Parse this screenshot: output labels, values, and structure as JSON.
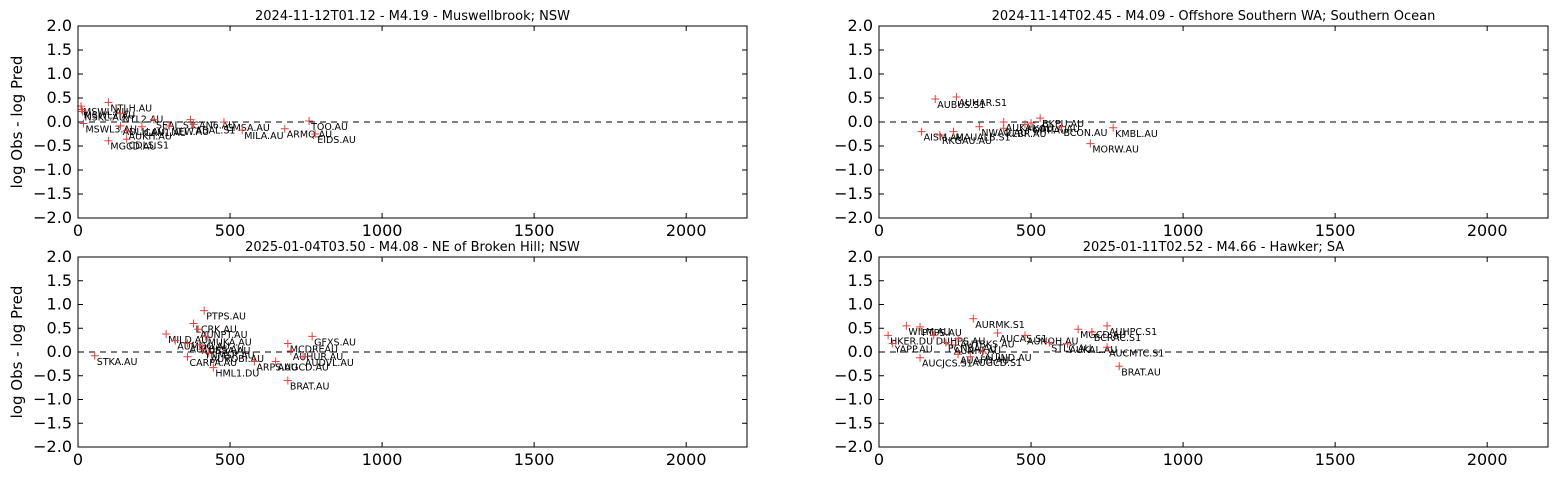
{
  "figure": {
    "ylabel": "log Obs - log Pred"
  },
  "chart_data": [
    {
      "type": "scatter",
      "title": "2024-11-12T01.12 - M4.19 - Muswellbrook; NSW",
      "xlabel": "",
      "ylabel": "log Obs - log Pred",
      "xlim": [
        0,
        2200
      ],
      "ylim": [
        -2.0,
        2.0
      ],
      "xticks": [
        0,
        500,
        1000,
        1500,
        2000
      ],
      "yticks": [
        2.0,
        1.5,
        1.0,
        0.5,
        0.0,
        -0.5,
        -1.0,
        -1.5,
        -2.0
      ],
      "reference_line": 0,
      "points": [
        {
          "label": "MSWL.AU",
          "x": 10,
          "y": 0.33
        },
        {
          "label": "MSWL2.AU",
          "x": 12,
          "y": 0.26
        },
        {
          "label": "NSKL.AU",
          "x": 15,
          "y": 0.22
        },
        {
          "label": "MSWL3.AU",
          "x": 18,
          "y": -0.03
        },
        {
          "label": "NTLH.AU",
          "x": 100,
          "y": 0.41
        },
        {
          "label": "NTL2.AU",
          "x": 140,
          "y": 0.18
        },
        {
          "label": "MGCD.AU",
          "x": 100,
          "y": -0.39
        },
        {
          "label": "ADLH.AU",
          "x": 140,
          "y": -0.08
        },
        {
          "label": "AUKH.AU",
          "x": 160,
          "y": -0.18
        },
        {
          "label": "CAN1.AU",
          "x": 210,
          "y": -0.1
        },
        {
          "label": "CDLS.S1",
          "x": 160,
          "y": -0.36
        },
        {
          "label": "SEAL.S1",
          "x": 250,
          "y": 0.05
        },
        {
          "label": "NEW.AU",
          "x": 300,
          "y": -0.08
        },
        {
          "label": "CAN6.AU",
          "x": 370,
          "y": 0.05
        },
        {
          "label": "CMSA.AU",
          "x": 480,
          "y": 0.0
        },
        {
          "label": "ABAL.S1",
          "x": 380,
          "y": -0.05
        },
        {
          "label": "MILA.AU",
          "x": 540,
          "y": -0.17
        },
        {
          "label": "ARMQ.AU",
          "x": 680,
          "y": -0.14
        },
        {
          "label": "TOO.AU",
          "x": 760,
          "y": 0.02
        },
        {
          "label": "EIDS.AU",
          "x": 780,
          "y": -0.25
        }
      ]
    },
    {
      "type": "scatter",
      "title": "2024-11-14T02.45 - M4.09 - Offshore Southern WA; Southern Ocean",
      "xlabel": "",
      "ylabel": "",
      "xlim": [
        0,
        2200
      ],
      "ylim": [
        -2.0,
        2.0
      ],
      "xticks": [
        0,
        500,
        1000,
        1500,
        2000
      ],
      "yticks": [
        2.0,
        1.5,
        1.0,
        0.5,
        0.0,
        -0.5,
        -1.0,
        -1.5,
        -2.0
      ],
      "reference_line": 0,
      "points": [
        {
          "label": "AUBUS.S1",
          "x": 185,
          "y": 0.48
        },
        {
          "label": "AUHAR.S1",
          "x": 255,
          "y": 0.52
        },
        {
          "label": "AISM.AU",
          "x": 140,
          "y": -0.2
        },
        {
          "label": "RKGAU.AU",
          "x": 200,
          "y": -0.27
        },
        {
          "label": "MAUALB.S1",
          "x": 245,
          "y": -0.2
        },
        {
          "label": "NWAO.AU",
          "x": 330,
          "y": -0.1
        },
        {
          "label": "KLBR.AU",
          "x": 410,
          "y": -0.13
        },
        {
          "label": "AUKAL.AU",
          "x": 410,
          "y": 0.0
        },
        {
          "label": "FORT.AU",
          "x": 480,
          "y": -0.05
        },
        {
          "label": "KOLLA.AU",
          "x": 500,
          "y": -0.02
        },
        {
          "label": "BKPU.AU",
          "x": 530,
          "y": 0.08
        },
        {
          "label": "BCON.AU",
          "x": 600,
          "y": -0.1
        },
        {
          "label": "KMBL.AU",
          "x": 770,
          "y": -0.12
        },
        {
          "label": "MORW.AU",
          "x": 695,
          "y": -0.45
        }
      ]
    },
    {
      "type": "scatter",
      "title": "2025-01-04T03.50 - M4.08 - NE of Broken Hill; NSW",
      "xlabel": "",
      "ylabel": "log Obs - log Pred",
      "xlim": [
        0,
        2200
      ],
      "ylim": [
        -2.0,
        2.0
      ],
      "xticks": [
        0,
        500,
        1000,
        1500,
        2000
      ],
      "yticks": [
        2.0,
        1.5,
        1.0,
        0.5,
        0.0,
        -0.5,
        -1.0,
        -1.5,
        -2.0
      ],
      "reference_line": 0,
      "points": [
        {
          "label": "STKA.AU",
          "x": 55,
          "y": -0.08
        },
        {
          "label": "MILD.AU",
          "x": 290,
          "y": 0.38
        },
        {
          "label": "AUMOO.AU",
          "x": 320,
          "y": 0.24
        },
        {
          "label": "AUTBKS.AU",
          "x": 360,
          "y": 0.18
        },
        {
          "label": "LCRK.AU",
          "x": 380,
          "y": 0.6
        },
        {
          "label": "PTPS.AU",
          "x": 415,
          "y": 0.87
        },
        {
          "label": "AUNPT.AU",
          "x": 395,
          "y": 0.48
        },
        {
          "label": "MUKA.AU",
          "x": 420,
          "y": 0.33
        },
        {
          "label": "AUBSA.AU",
          "x": 400,
          "y": 0.15
        },
        {
          "label": "YNMSR.AU",
          "x": 410,
          "y": 0.05
        },
        {
          "label": "CARPA.AU",
          "x": 360,
          "y": -0.1
        },
        {
          "label": "AUROBI.AU",
          "x": 430,
          "y": -0.02
        },
        {
          "label": "HML1.DU",
          "x": 445,
          "y": -0.33
        },
        {
          "label": "ARPS.AU",
          "x": 580,
          "y": -0.2
        },
        {
          "label": "AUGCD.AU",
          "x": 650,
          "y": -0.2
        },
        {
          "label": "MCDREAU",
          "x": 690,
          "y": 0.18
        },
        {
          "label": "GFXS.AU",
          "x": 770,
          "y": 0.33
        },
        {
          "label": "AUHUR.AU",
          "x": 700,
          "y": 0.02
        },
        {
          "label": "AUDVL.AU",
          "x": 740,
          "y": -0.1
        },
        {
          "label": "BRAT.AU",
          "x": 690,
          "y": -0.6
        }
      ]
    },
    {
      "type": "scatter",
      "title": "2025-01-11T02.52 - M4.66 - Hawker; SA",
      "xlabel": "",
      "ylabel": "",
      "xlim": [
        0,
        2200
      ],
      "ylim": [
        -2.0,
        2.0
      ],
      "xticks": [
        0,
        500,
        1000,
        1500,
        2000
      ],
      "yticks": [
        2.0,
        1.5,
        1.0,
        0.5,
        0.0,
        -0.5,
        -1.0,
        -1.5,
        -2.0
      ],
      "reference_line": 0,
      "points": [
        {
          "label": "HKER.DU",
          "x": 30,
          "y": 0.35
        },
        {
          "label": "YAPP.AU",
          "x": 45,
          "y": 0.18
        },
        {
          "label": "WILM.AU",
          "x": 90,
          "y": 0.55
        },
        {
          "label": "PTPS.AU",
          "x": 135,
          "y": 0.53
        },
        {
          "label": "AUCJCS.S1",
          "x": 135,
          "y": -0.12
        },
        {
          "label": "DUHPS.AU",
          "x": 180,
          "y": 0.35
        },
        {
          "label": "AURMK.S1",
          "x": 310,
          "y": 0.7
        },
        {
          "label": "AUTBKS.AU",
          "x": 260,
          "y": 0.28
        },
        {
          "label": "AUCAS.S1",
          "x": 390,
          "y": 0.4
        },
        {
          "label": "AUNOH.AU",
          "x": 480,
          "y": 0.35
        },
        {
          "label": "AUNHJ.AU",
          "x": 240,
          "y": 0.15
        },
        {
          "label": "PCNBA.AU",
          "x": 220,
          "y": 0.2
        },
        {
          "label": "AUAFD.AU",
          "x": 260,
          "y": -0.05
        },
        {
          "label": "STLC.AU",
          "x": 560,
          "y": 0.2
        },
        {
          "label": "AUIND.AU",
          "x": 340,
          "y": 0.0
        },
        {
          "label": "AUGCD.S1",
          "x": 300,
          "y": -0.1
        },
        {
          "label": "MGCD.AU",
          "x": 655,
          "y": 0.48
        },
        {
          "label": "AUKAL.AU",
          "x": 620,
          "y": 0.17
        },
        {
          "label": "AUHPC.S1",
          "x": 750,
          "y": 0.55
        },
        {
          "label": "BCRAC.S1",
          "x": 700,
          "y": 0.42
        },
        {
          "label": "AUCMTC.S1",
          "x": 750,
          "y": 0.1
        },
        {
          "label": "BRAT.AU",
          "x": 790,
          "y": -0.3
        }
      ]
    }
  ]
}
